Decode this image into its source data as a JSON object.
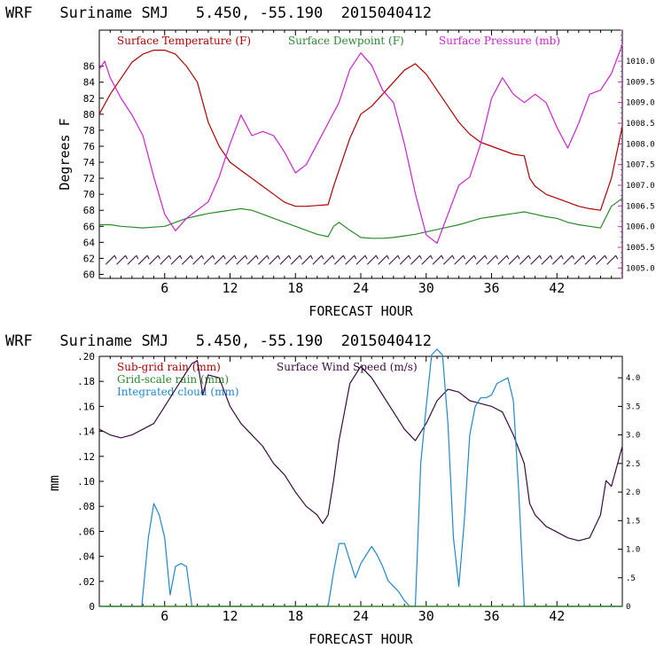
{
  "colors": {
    "temperature": "#b00000",
    "dewpoint": "#2a8a2a",
    "pressure": "#d020d0",
    "subgrid_rain": "#b00000",
    "gridscale_rain": "#2a8a2a",
    "cloud": "#1e88d0",
    "wind": "#3a0a40",
    "barbs": "#3a0a40"
  },
  "chart_data": [
    {
      "type": "line",
      "title": "WRF   Suriname SMJ   5.450, -55.190  2015040412",
      "xlabel": "FORECAST HOUR",
      "ylabel": "Degrees F",
      "xlim": [
        0,
        48
      ],
      "ylim": [
        59.5,
        90.5
      ],
      "y2lim": [
        1004.75,
        1010.75
      ],
      "xticks": [
        "6",
        "12",
        "18",
        "24",
        "30",
        "36",
        "42"
      ],
      "xtick_values": [
        6,
        12,
        18,
        24,
        30,
        36,
        42
      ],
      "yticks": [
        "60",
        "62",
        "64",
        "66",
        "68",
        "70",
        "72",
        "74",
        "76",
        "78",
        "80",
        "82",
        "84",
        "86"
      ],
      "ytick_values": [
        60,
        62,
        64,
        66,
        68,
        70,
        72,
        74,
        76,
        78,
        80,
        82,
        84,
        86
      ],
      "y2ticks": [
        "1005.0",
        "1005.5",
        "1006.0",
        "1006.5",
        "1007.0",
        "1007.5",
        "1008.0",
        "1008.5",
        "1009.0",
        "1009.5",
        "1010.0"
      ],
      "y2tick_values": [
        1005.0,
        1005.5,
        1006.0,
        1006.5,
        1007.0,
        1007.5,
        1008.0,
        1008.5,
        1009.0,
        1009.5,
        1010.0
      ],
      "legend": [
        "Surface Temperature (F)",
        "Surface Dewpoint (F)",
        "Surface Pressure (mb)"
      ],
      "series": [
        {
          "name": "Surface Temperature (F)",
          "axis": "left",
          "x": [
            0,
            1,
            2,
            3,
            4,
            5,
            6,
            7,
            8,
            9,
            10,
            11,
            12,
            13,
            14,
            15,
            16,
            17,
            18,
            19,
            20,
            21,
            21.5,
            22,
            23,
            24,
            25,
            26,
            27,
            28,
            29,
            30,
            31,
            32,
            33,
            34,
            35,
            36,
            37,
            38,
            39,
            39.5,
            40,
            41,
            42,
            43,
            44,
            45,
            46,
            47,
            48
          ],
          "y": [
            80,
            82.5,
            84.5,
            86.5,
            87.5,
            88,
            88,
            87.5,
            86,
            84,
            79,
            76,
            74,
            73,
            72,
            71,
            70,
            69,
            68.5,
            68.5,
            68.6,
            68.7,
            71,
            73,
            77,
            80,
            81,
            82.5,
            84,
            85.5,
            86.3,
            85,
            83,
            81,
            79,
            77.5,
            76.5,
            76,
            75.5,
            75,
            74.8,
            72,
            71,
            70,
            69.5,
            69,
            68.5,
            68.2,
            68,
            72,
            78.5
          ]
        },
        {
          "name": "Surface Dewpoint (F)",
          "axis": "left",
          "x": [
            0,
            1,
            2,
            3,
            4,
            5,
            6,
            7,
            8,
            9,
            10,
            11,
            12,
            13,
            14,
            15,
            16,
            17,
            18,
            19,
            20,
            21,
            21.5,
            22,
            23,
            24,
            25,
            26,
            27,
            28,
            29,
            30,
            31,
            32,
            33,
            34,
            35,
            36,
            37,
            38,
            39,
            40,
            41,
            42,
            43,
            44,
            45,
            46,
            47,
            48
          ],
          "y": [
            66.2,
            66.2,
            66,
            65.9,
            65.8,
            65.9,
            66,
            66.5,
            67,
            67.3,
            67.6,
            67.8,
            68,
            68.2,
            68,
            67.5,
            67,
            66.5,
            66,
            65.5,
            65,
            64.7,
            66,
            66.5,
            65.5,
            64.6,
            64.5,
            64.5,
            64.6,
            64.8,
            65,
            65.3,
            65.6,
            65.9,
            66.2,
            66.6,
            67,
            67.2,
            67.4,
            67.6,
            67.8,
            67.5,
            67.2,
            67,
            66.5,
            66.2,
            66,
            65.8,
            68.5,
            69.5
          ]
        },
        {
          "name": "Surface Pressure (mb)",
          "axis": "right",
          "x": [
            0,
            0.5,
            1,
            2,
            3,
            4,
            5,
            6,
            7,
            8,
            9,
            10,
            11,
            12,
            13,
            14,
            15,
            16,
            17,
            18,
            19,
            20,
            21,
            22,
            23,
            24,
            25,
            26,
            27,
            28,
            29,
            30,
            31,
            32,
            33,
            34,
            35,
            36,
            37,
            38,
            39,
            40,
            41,
            42,
            43,
            44,
            45,
            46,
            47,
            48
          ],
          "y": [
            1009.8,
            1010.0,
            1009.6,
            1009.1,
            1008.7,
            1008.2,
            1007.2,
            1006.3,
            1005.9,
            1006.2,
            1006.4,
            1006.6,
            1007.2,
            1008.0,
            1008.7,
            1008.2,
            1008.3,
            1008.2,
            1007.8,
            1007.3,
            1007.5,
            1008.0,
            1008.5,
            1009.0,
            1009.8,
            1010.2,
            1009.9,
            1009.3,
            1009.0,
            1008.0,
            1006.8,
            1005.8,
            1005.6,
            1006.3,
            1007.0,
            1007.2,
            1008.0,
            1009.1,
            1009.6,
            1009.2,
            1009.0,
            1009.2,
            1009.0,
            1008.4,
            1007.9,
            1008.5,
            1009.2,
            1009.3,
            1009.7,
            1010.4
          ]
        },
        {
          "name": "Surface Wind Barbs",
          "axis": "left",
          "style": "barbs",
          "level": 61.8
        }
      ]
    },
    {
      "type": "line",
      "title": "WRF   Suriname SMJ   5.450, -55.190  2015040412",
      "xlabel": "FORECAST HOUR",
      "ylabel": "mm",
      "xlim": [
        0,
        48
      ],
      "ylim": [
        0,
        0.2
      ],
      "y2lim": [
        0,
        4.375
      ],
      "xticks": [
        "6",
        "12",
        "18",
        "24",
        "30",
        "36",
        "42"
      ],
      "xtick_values": [
        6,
        12,
        18,
        24,
        30,
        36,
        42
      ],
      "yticks": [
        "0",
        ".02",
        ".04",
        ".06",
        ".08",
        ".10",
        ".12",
        ".14",
        ".16",
        ".18",
        ".20"
      ],
      "ytick_values": [
        0,
        0.02,
        0.04,
        0.06,
        0.08,
        0.1,
        0.12,
        0.14,
        0.16,
        0.18,
        0.2
      ],
      "y2ticks": [
        "0",
        ".5",
        "1.0",
        "1.5",
        "2.0",
        "2.5",
        "3.0",
        "3.5",
        "4.0"
      ],
      "y2tick_values": [
        0,
        0.5,
        1.0,
        1.5,
        2.0,
        2.5,
        3.0,
        3.5,
        4.0
      ],
      "legend": [
        "Sub-grid rain (mm)",
        "Surface Wind Speed (m/s)",
        "Grid-scale rain (mm)",
        "Integrated cloud (mm)"
      ],
      "series": [
        {
          "name": "Surface Wind Speed (m/s)",
          "axis": "right",
          "x": [
            0,
            1,
            2,
            3,
            4,
            5,
            6,
            7,
            8,
            8.5,
            9,
            9.5,
            10,
            11,
            12,
            13,
            14,
            15,
            16,
            17,
            18,
            19,
            20,
            20.5,
            21,
            21.5,
            22,
            23,
            24,
            25,
            26,
            27,
            28,
            29,
            30,
            31,
            32,
            33,
            34,
            35,
            36,
            37,
            38,
            39,
            39.5,
            40,
            41,
            42,
            43,
            44,
            45,
            46,
            46.5,
            47,
            48
          ],
          "y": [
            3.1,
            3.0,
            2.95,
            3.0,
            3.1,
            3.2,
            3.5,
            3.8,
            4.1,
            4.25,
            4.3,
            3.7,
            4.05,
            4.0,
            3.5,
            3.2,
            3.0,
            2.8,
            2.5,
            2.3,
            2.0,
            1.75,
            1.6,
            1.45,
            1.6,
            2.2,
            2.9,
            3.9,
            4.2,
            4.0,
            3.7,
            3.4,
            3.1,
            2.9,
            3.2,
            3.6,
            3.8,
            3.75,
            3.6,
            3.55,
            3.5,
            3.4,
            3.0,
            2.5,
            1.8,
            1.6,
            1.4,
            1.3,
            1.2,
            1.15,
            1.2,
            1.6,
            2.2,
            2.1,
            2.8
          ]
        },
        {
          "name": "Integrated cloud (mm)",
          "axis": "right",
          "x": [
            0,
            3.9,
            4.5,
            5,
            5.5,
            6,
            6.5,
            7,
            7.5,
            8,
            8.5,
            9,
            20.5,
            21,
            21.5,
            22,
            22.5,
            23,
            23.5,
            24,
            24.5,
            25,
            25.5,
            26,
            26.5,
            27,
            27.5,
            28,
            28.5,
            29,
            29.5,
            30,
            30.5,
            31,
            31.5,
            32,
            32.5,
            33,
            33.5,
            34,
            34.5,
            35,
            35.5,
            36,
            36.5,
            37,
            37.5,
            38,
            38.5,
            39,
            39.2,
            48
          ],
          "y": [
            0,
            0,
            1.2,
            1.8,
            1.6,
            1.2,
            0.2,
            0.7,
            0.75,
            0.7,
            0,
            0,
            0,
            0,
            0.6,
            1.1,
            1.1,
            0.8,
            0.5,
            0.75,
            0.9,
            1.05,
            0.9,
            0.7,
            0.45,
            0.35,
            0.25,
            0.1,
            0,
            0,
            2.5,
            3.5,
            4.4,
            4.5,
            4.4,
            3.2,
            1.2,
            0.35,
            1.5,
            3.0,
            3.5,
            3.65,
            3.65,
            3.7,
            3.9,
            3.95,
            4.0,
            3.6,
            2.0,
            0,
            0,
            0
          ]
        },
        {
          "name": "Sub-grid rain (mm)",
          "axis": "left",
          "x": [
            0,
            48
          ],
          "y": [
            0,
            0
          ]
        },
        {
          "name": "Grid-scale rain (mm)",
          "axis": "left",
          "x": [
            0,
            48
          ],
          "y": [
            0,
            0
          ]
        }
      ]
    }
  ]
}
